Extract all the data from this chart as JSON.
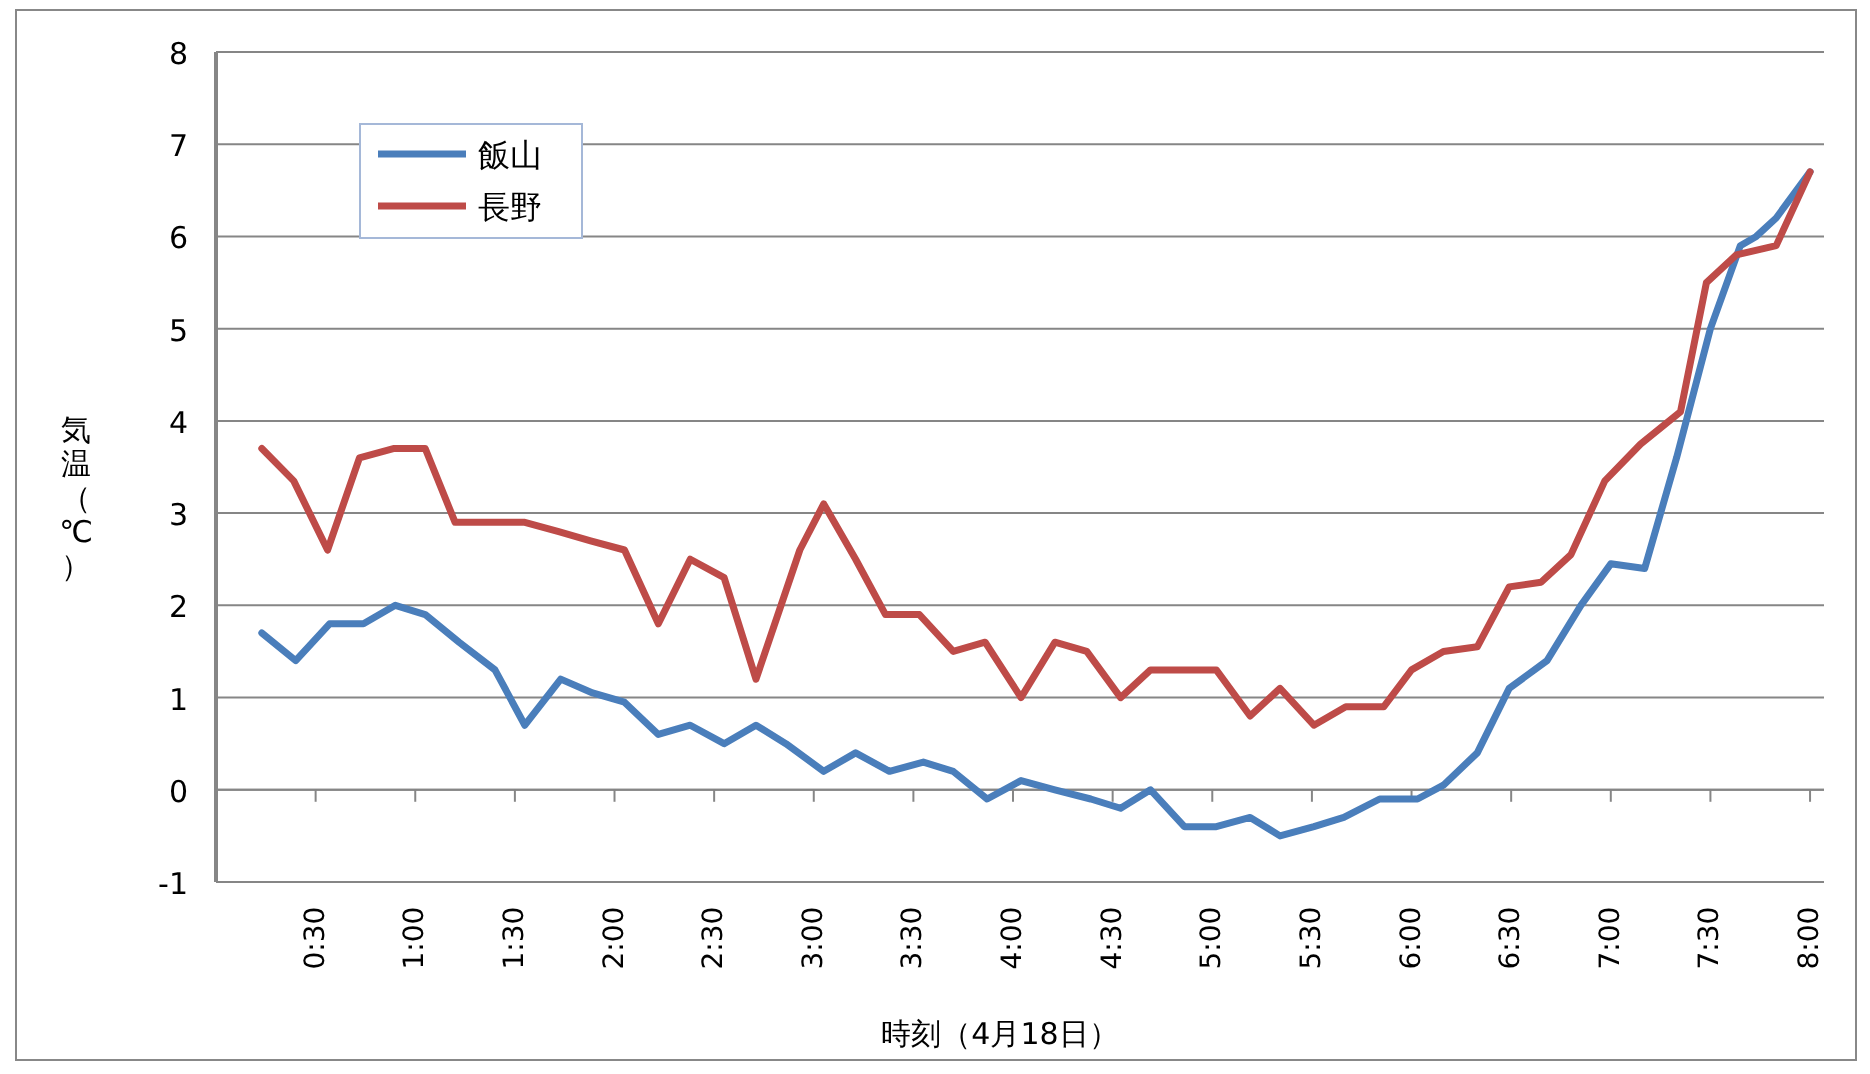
{
  "chart_data": {
    "type": "line",
    "xlabel": "時刻（4月18日）",
    "ylabel": "気温（℃）",
    "xlim": [
      0,
      8.07
    ],
    "ylim": [
      -1,
      8
    ],
    "yticks": [
      -1,
      0,
      1,
      2,
      3,
      4,
      5,
      6,
      7,
      8
    ],
    "xticks": [
      {
        "value": 0.5,
        "label": "0:30"
      },
      {
        "value": 1,
        "label": "1:00"
      },
      {
        "value": 1.5,
        "label": "1:30"
      },
      {
        "value": 2,
        "label": "2:00"
      },
      {
        "value": 2.5,
        "label": "2:30"
      },
      {
        "value": 3,
        "label": "3:00"
      },
      {
        "value": 3.5,
        "label": "3:30"
      },
      {
        "value": 4,
        "label": "4:00"
      },
      {
        "value": 4.5,
        "label": "4:30"
      },
      {
        "value": 5,
        "label": "5:00"
      },
      {
        "value": 5.5,
        "label": "5:30"
      },
      {
        "value": 6,
        "label": "6:00"
      },
      {
        "value": 6.5,
        "label": "6:30"
      },
      {
        "value": 7,
        "label": "7:00"
      },
      {
        "value": 7.5,
        "label": "7:30"
      },
      {
        "value": 8,
        "label": "8:00"
      }
    ],
    "grid": "y",
    "legend": "top left",
    "marker": "none",
    "line_style": "solid",
    "series": [
      {
        "name": "飯山",
        "color": "#4a7ebb",
        "x": [
          0.23,
          0.4,
          0.57,
          0.74,
          0.9,
          1.05,
          1.22,
          1.4,
          1.55,
          1.73,
          1.89,
          2.05,
          2.22,
          2.38,
          2.55,
          2.71,
          2.86,
          3.05,
          3.21,
          3.38,
          3.55,
          3.7,
          3.87,
          4.04,
          4.21,
          4.39,
          4.54,
          4.69,
          4.86,
          5.02,
          5.19,
          5.34,
          5.51,
          5.66,
          5.84,
          6.03,
          6.16,
          6.33,
          6.49,
          6.68,
          6.85,
          7.0,
          7.17,
          7.33,
          7.5,
          7.65,
          7.73,
          7.83,
          8.0
        ],
        "values": [
          1.7,
          1.4,
          1.8,
          1.8,
          2.0,
          1.9,
          1.6,
          1.3,
          0.7,
          1.2,
          1.05,
          0.95,
          0.6,
          0.7,
          0.5,
          0.7,
          0.5,
          0.2,
          0.4,
          0.2,
          0.3,
          0.2,
          -0.1,
          0.1,
          0,
          -0.1,
          -0.2,
          0,
          -0.4,
          -0.4,
          -0.3,
          -0.5,
          -0.4,
          -0.3,
          -0.1,
          -0.1,
          0.05,
          0.4,
          1.1,
          1.4,
          2.0,
          2.45,
          2.4,
          3.6,
          5.0,
          5.9,
          6.0,
          6.2,
          6.7
        ]
      },
      {
        "name": "長野",
        "color": "#be4b48",
        "x": [
          0.23,
          0.39,
          0.56,
          0.72,
          0.89,
          1.05,
          1.2,
          1.55,
          1.72,
          1.88,
          2.05,
          2.22,
          2.38,
          2.55,
          2.71,
          2.93,
          3.05,
          3.21,
          3.36,
          3.53,
          3.7,
          3.86,
          4.04,
          4.21,
          4.37,
          4.54,
          4.69,
          5.02,
          5.19,
          5.34,
          5.51,
          5.67,
          5.86,
          6.0,
          6.16,
          6.33,
          6.49,
          6.65,
          6.8,
          6.97,
          7.15,
          7.35,
          7.48,
          7.63,
          7.83,
          8.0
        ],
        "values": [
          3.7,
          3.35,
          2.6,
          3.6,
          3.7,
          3.7,
          2.9,
          2.9,
          2.8,
          2.7,
          2.6,
          1.8,
          2.5,
          2.3,
          1.2,
          2.6,
          3.1,
          2.5,
          1.9,
          1.9,
          1.5,
          1.6,
          1.0,
          1.6,
          1.5,
          1.0,
          1.3,
          1.3,
          0.8,
          1.1,
          0.7,
          0.9,
          0.9,
          1.3,
          1.5,
          1.55,
          2.2,
          2.25,
          2.55,
          3.35,
          3.75,
          4.1,
          5.5,
          5.8,
          5.9,
          6.7
        ]
      }
    ]
  }
}
